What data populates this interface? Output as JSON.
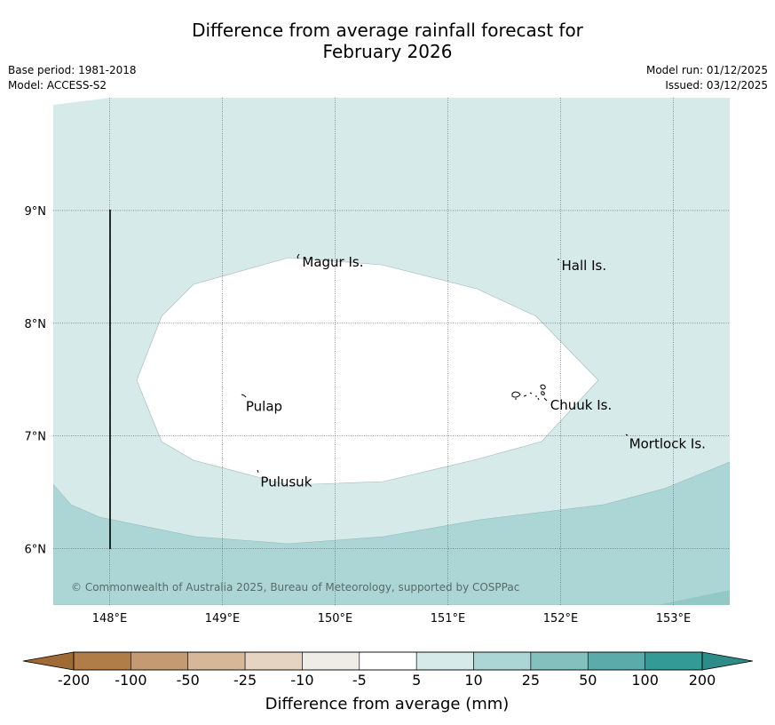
{
  "title": {
    "line1": "Difference from average rainfall forecast for",
    "line2": "February 2026"
  },
  "meta_left": {
    "base_period": "Base period: 1981-2018",
    "model": "Model: ACCESS-S2"
  },
  "meta_right": {
    "model_run": "Model run: 01/12/2025",
    "issued": "Issued: 03/12/2025"
  },
  "map": {
    "lon_range": [
      147.5,
      153.5
    ],
    "lat_range": [
      5.5,
      10.0
    ],
    "lat_ticks": [
      {
        "value": 9,
        "label": "9°N"
      },
      {
        "value": 8,
        "label": "8°N"
      },
      {
        "value": 7,
        "label": "7°N"
      },
      {
        "value": 6,
        "label": "6°N"
      }
    ],
    "lon_ticks": [
      {
        "value": 148,
        "label": "148°E"
      },
      {
        "value": 149,
        "label": "149°E"
      },
      {
        "value": 150,
        "label": "150°E"
      },
      {
        "value": 151,
        "label": "151°E"
      },
      {
        "value": 152,
        "label": "152°E"
      },
      {
        "value": 153,
        "label": "153°E"
      }
    ],
    "places": [
      {
        "name": "Magur Is.",
        "lon": 149.7,
        "lat": 8.55
      },
      {
        "name": "Hall Is.",
        "lon": 152.0,
        "lat": 8.52
      },
      {
        "name": "Pulap",
        "lon": 149.2,
        "lat": 7.27
      },
      {
        "name": "Chuuk Is.",
        "lon": 151.9,
        "lat": 7.28
      },
      {
        "name": "Mortlock Is.",
        "lon": 152.6,
        "lat": 6.94
      },
      {
        "name": "Pulusuk",
        "lon": 149.33,
        "lat": 6.6
      }
    ],
    "copyright": "© Commonwealth of Australia 2025, Bureau of Meteorology, supported by COSPPac",
    "zone_colors": {
      "light_teal": "#d5eae9",
      "white": "#ffffff",
      "mid_teal": "#acd6d5"
    }
  },
  "colorbar": {
    "title": "Difference from average (mm)",
    "tick_labels": [
      "-200",
      "-100",
      "-50",
      "-25",
      "-10",
      "-5",
      "5",
      "10",
      "25",
      "50",
      "100",
      "200"
    ],
    "bins": [
      {
        "range": "-200 to -100",
        "color": "#b07c48"
      },
      {
        "range": "-100 to -50",
        "color": "#c39a71"
      },
      {
        "range": "-50 to -25",
        "color": "#d6b797"
      },
      {
        "range": "-25 to -10",
        "color": "#e6d4c2"
      },
      {
        "range": "-10 to -5",
        "color": "#efebe6"
      },
      {
        "range": "-5 to 5",
        "color": "#ffffff"
      },
      {
        "range": "5 to 10",
        "color": "#d5eae9"
      },
      {
        "range": "10 to 25",
        "color": "#acd6d5"
      },
      {
        "range": "25 to 50",
        "color": "#83c0be"
      },
      {
        "range": "50 to 100",
        "color": "#5aaba9"
      },
      {
        "range": "100 to 200",
        "color": "#349a96"
      }
    ],
    "low_extend_color": "#a06a35",
    "high_extend_color": "#2e8c88"
  }
}
